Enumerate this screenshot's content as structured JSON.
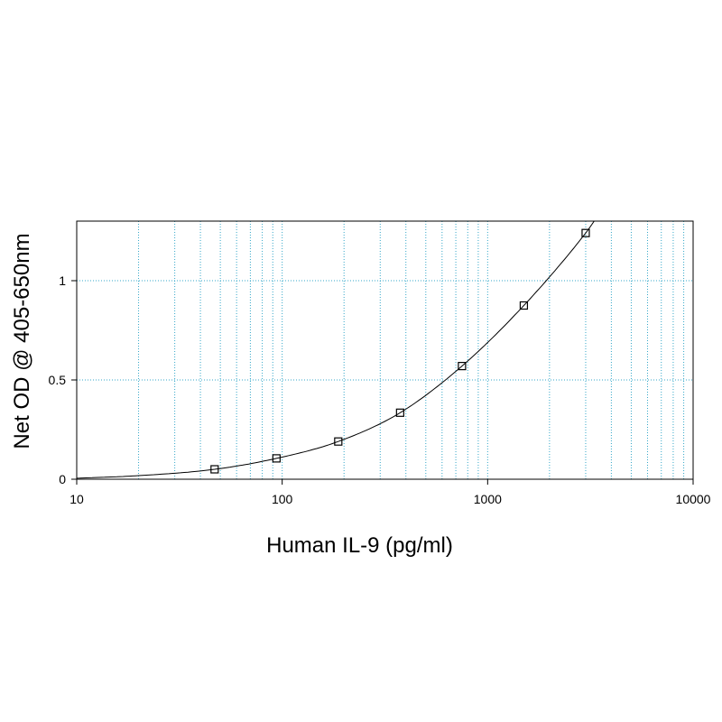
{
  "chart_data": {
    "type": "scatter",
    "title": "",
    "xlabel": "Human IL-9 (pg/ml)",
    "ylabel": "Net OD @ 405-650nm",
    "xscale": "log",
    "xlim": [
      10,
      10000
    ],
    "ylim": [
      0,
      1.3
    ],
    "x_ticks": [
      10,
      100,
      1000,
      10000
    ],
    "x_tick_labels": [
      "10",
      "100",
      "1000",
      "10000"
    ],
    "y_ticks": [
      0,
      0.5,
      1
    ],
    "y_tick_labels": [
      "0",
      "0.5",
      "1"
    ],
    "grid": true,
    "grid_style": "dotted",
    "legend": "none",
    "series": [
      {
        "marker": "open-square",
        "x": [
          46.9,
          93.8,
          187.5,
          375,
          750,
          1500,
          3000
        ],
        "y": [
          0.05,
          0.105,
          0.19,
          0.335,
          0.57,
          0.875,
          1.24
        ]
      }
    ],
    "fit_curve": {
      "type": "4PL",
      "x": [
        10,
        20,
        46.9,
        93.8,
        187.5,
        375,
        750,
        1500,
        3000,
        3300
      ],
      "y": [
        0.005,
        0.018,
        0.05,
        0.105,
        0.19,
        0.335,
        0.57,
        0.875,
        1.24,
        1.3
      ]
    },
    "colors": {
      "grid": "#35a7c9",
      "axis": "#000000",
      "curve": "#000000"
    }
  }
}
